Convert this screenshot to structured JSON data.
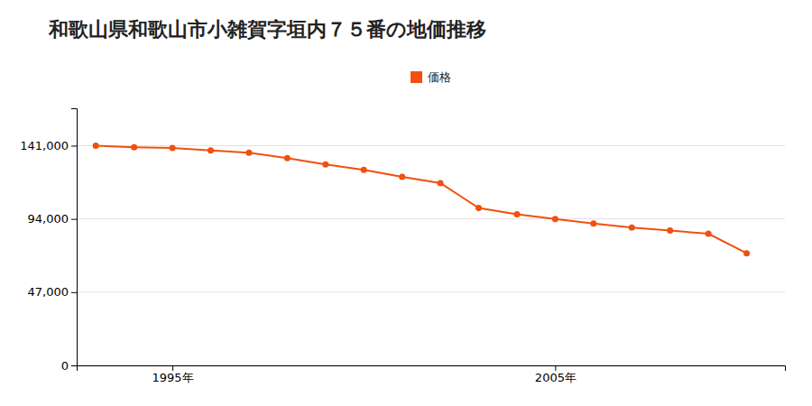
{
  "chart_data": {
    "type": "line",
    "title": "和歌山県和歌山市小雑賀字垣内７５番の地価推移",
    "x": [
      1993,
      1994,
      1995,
      1996,
      1997,
      1998,
      1999,
      2000,
      2001,
      2002,
      2003,
      2004,
      2005,
      2006,
      2007,
      2008,
      2009,
      2010
    ],
    "series": [
      {
        "name": "価格",
        "color": "#f05010",
        "marker": "circle",
        "values": [
          141000,
          140000,
          139500,
          138000,
          136500,
          133000,
          129000,
          125500,
          121000,
          117000,
          101000,
          97000,
          94000,
          91000,
          88500,
          86500,
          84500,
          72000
        ]
      }
    ],
    "xlim": [
      1992.5,
      2011
    ],
    "xticks": [
      {
        "value": 1995,
        "label": "1995年"
      },
      {
        "value": 2005,
        "label": "2005年"
      }
    ],
    "ylim": [
      0,
      165000
    ],
    "yticks": [
      0,
      {
        "value": 47000,
        "label": "47,000"
      },
      {
        "value": 94000,
        "label": "94,000"
      },
      {
        "value": 141000,
        "label": "141,000"
      }
    ],
    "grid": true,
    "legend": "top"
  }
}
